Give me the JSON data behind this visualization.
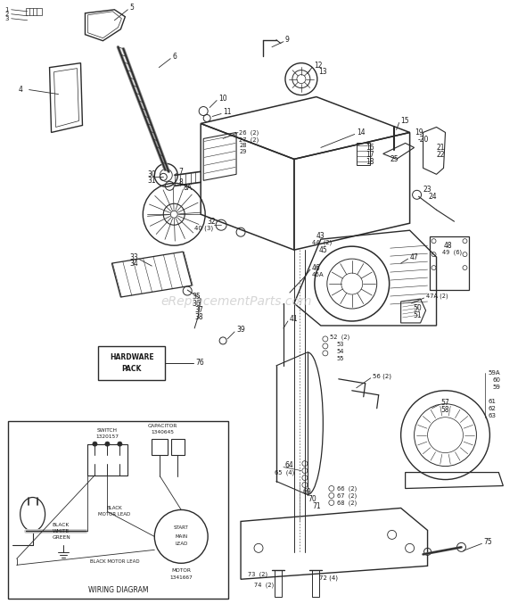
{
  "bg_color": "#ffffff",
  "line_color": "#2a2a2a",
  "text_color": "#1a1a1a",
  "watermark": "eReplacementParts.com",
  "wiring_title": "WIRING DIAGRAM",
  "hw_text": "HARDWARE\nPACK",
  "fig_w": 5.9,
  "fig_h": 6.86,
  "dpi": 100
}
